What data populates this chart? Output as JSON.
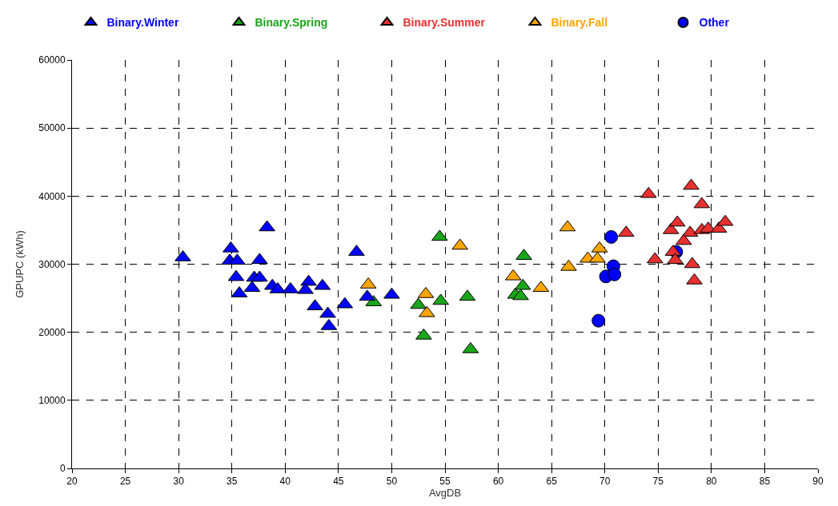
{
  "chart_data": {
    "type": "scatter",
    "xlabel": "AvgDB",
    "ylabel": "GPUPC (kWh)",
    "xlim": [
      20,
      90
    ],
    "xticks": [
      20,
      25,
      30,
      35,
      40,
      45,
      50,
      55,
      60,
      65,
      70,
      75,
      80,
      85,
      90
    ],
    "ylim": [
      0,
      60000
    ],
    "yticks": [
      0,
      10000,
      20000,
      30000,
      40000,
      50000,
      60000
    ],
    "grid": true,
    "legend": "top",
    "series": [
      {
        "name": "Binary.Winter",
        "color": "#0000ff",
        "marker": "triangle",
        "x": [
          30.4,
          34.9,
          34.8,
          35.5,
          35.4,
          35.7,
          37.6,
          37.1,
          37.6,
          36.9,
          38.3,
          38.8,
          39.3,
          40.5,
          42.2,
          41.9,
          43.5,
          42.8,
          44.0,
          44.1,
          45.6,
          46.7,
          47.7,
          50.0
        ],
        "values": [
          31000,
          32300,
          30500,
          30500,
          28100,
          25700,
          30600,
          28000,
          28000,
          26500,
          35400,
          26800,
          26300,
          26300,
          27400,
          26200,
          26800,
          23800,
          22700,
          20900,
          24100,
          31800,
          25200,
          25500
        ]
      },
      {
        "name": "Binary.Spring",
        "color": "#1aa51a",
        "marker": "triangle",
        "x": [
          54.5,
          48.3,
          52.5,
          54.6,
          57.1,
          53.0,
          57.4,
          62.4,
          61.6,
          62.1,
          62.3
        ],
        "values": [
          34000,
          24400,
          24000,
          24600,
          25200,
          19500,
          17500,
          31200,
          25500,
          25300,
          26800
        ]
      },
      {
        "name": "Binary.Summer",
        "color": "#e83030",
        "marker": "triangle",
        "x": [
          74.1,
          78.1,
          79.1,
          72.0,
          74.7,
          76.2,
          76.8,
          78.0,
          77.4,
          76.4,
          76.6,
          78.2,
          78.4,
          78.8,
          79.1,
          79.7,
          80.7,
          81.3
        ],
        "values": [
          40300,
          41500,
          38800,
          34600,
          30700,
          35000,
          36100,
          34600,
          33400,
          31800,
          30600,
          30000,
          27600,
          null,
          35000,
          35200,
          35200,
          36200
        ]
      },
      {
        "name": "Binary.Fall",
        "color": "#ffa500",
        "marker": "triangle",
        "x": [
          56.4,
          47.8,
          53.2,
          53.3,
          61.4,
          64.0,
          66.5,
          66.6,
          68.4,
          69.3,
          69.5
        ],
        "values": [
          32700,
          27000,
          25600,
          22800,
          28200,
          26500,
          35400,
          29600,
          30800,
          30800,
          32300
        ]
      },
      {
        "name": "Other",
        "color": "#0000ff",
        "marker": "circle",
        "x": [
          70.6,
          70.8,
          70.1,
          70.9,
          69.4,
          76.7
        ],
        "values": [
          34000,
          29700,
          28200,
          28500,
          21700,
          31800
        ]
      }
    ]
  }
}
